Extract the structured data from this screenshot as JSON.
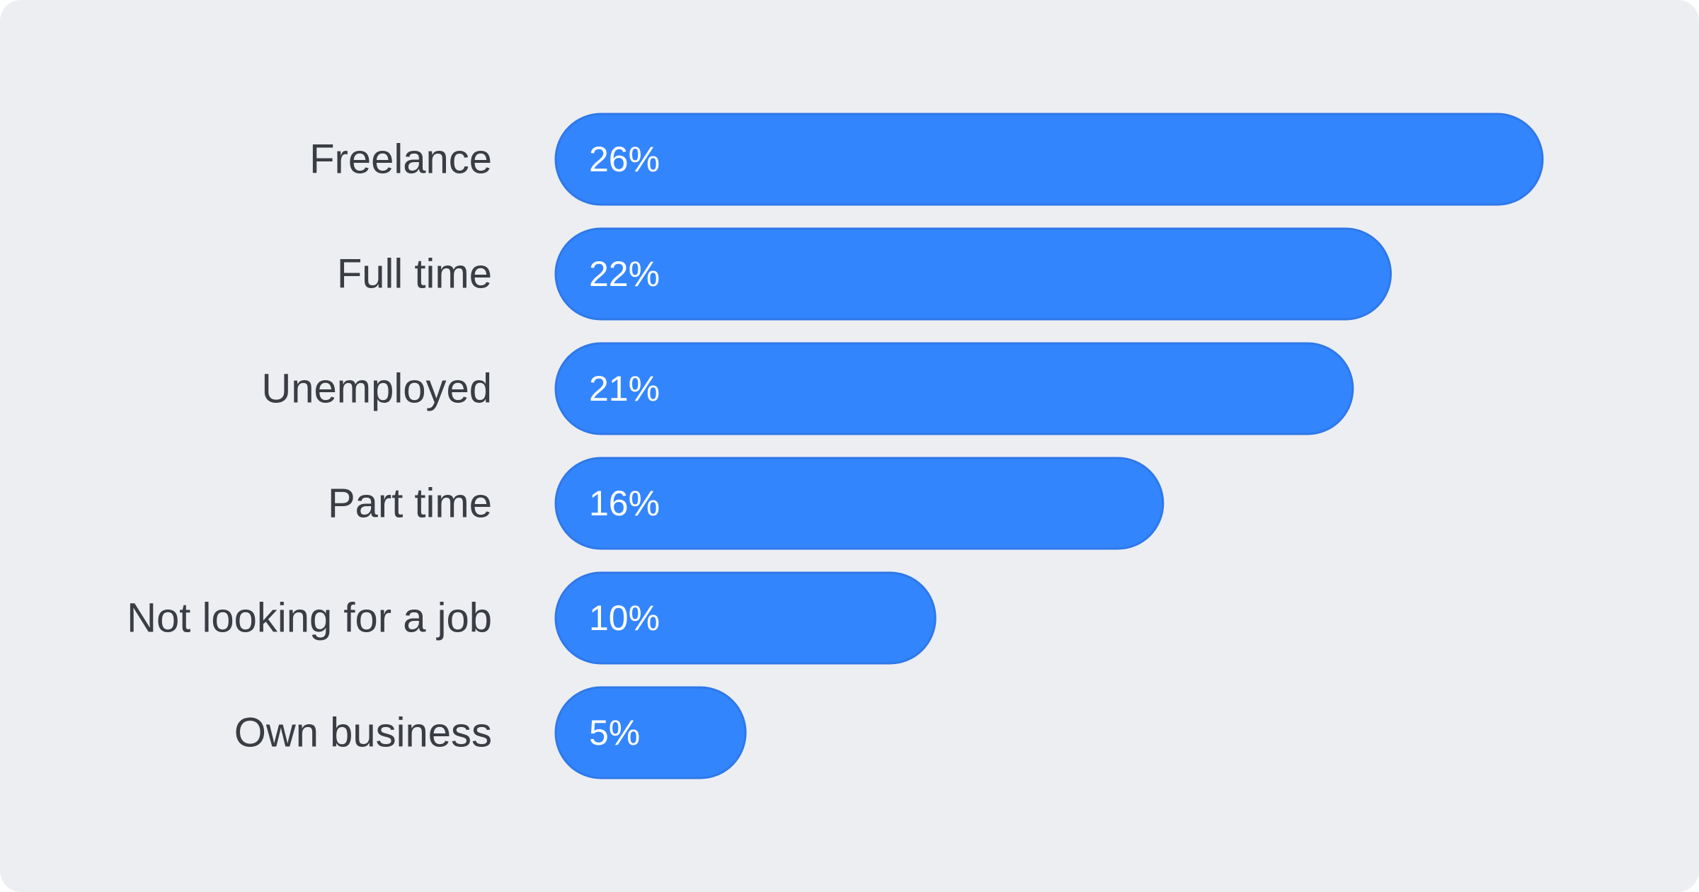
{
  "colors": {
    "background": "#eceef2",
    "bar": "#3385fd",
    "bar_stroke": "#2f78e8",
    "category_text": "#3a3d44",
    "value_text": "#ffffff"
  },
  "chart_data": {
    "type": "bar",
    "orientation": "horizontal",
    "categories": [
      "Freelance",
      "Full time",
      "Unemployed",
      "Part time",
      "Not looking for a job",
      "Own business"
    ],
    "values": [
      26,
      22,
      21,
      16,
      10,
      5
    ],
    "value_labels": [
      "26%",
      "22%",
      "21%",
      "16%",
      "10%",
      "5%"
    ],
    "unit": "%",
    "title": "",
    "xlabel": "",
    "ylabel": "",
    "xlim": [
      0,
      26
    ],
    "grid": false,
    "legend": "none"
  }
}
